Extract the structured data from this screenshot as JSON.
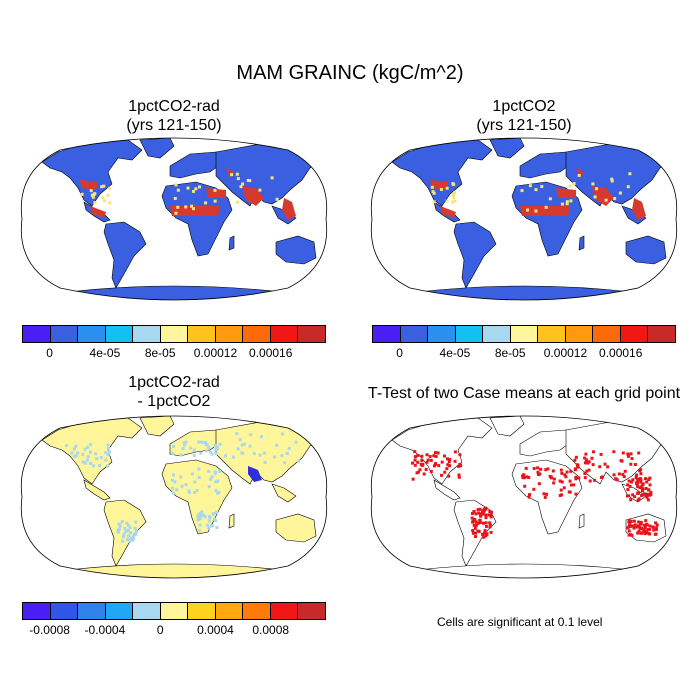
{
  "figure": {
    "title": "MAM GRAINC (kgC/m^2)",
    "note": "Cells are significant at 0.1 level"
  },
  "panels": [
    {
      "id": "p1",
      "title_line1": "1pctCO2-rad",
      "title_line2": "(yrs 121-150)",
      "fill": "#3a5fe0"
    },
    {
      "id": "p2",
      "title_line1": "1pctCO2",
      "title_line2": "(yrs 121-150)",
      "fill": "#3a5fe0"
    },
    {
      "id": "p3",
      "title_line1": "1pctCO2-rad",
      "title_line2": "- 1pctCO2",
      "fill": "#fff59a"
    },
    {
      "id": "p4",
      "title_line1": "T-Test of two Case means at each grid point",
      "title_line2": "",
      "fill": "#ffffff"
    }
  ],
  "colorbar_top": {
    "colors": [
      "#4a1ff5",
      "#3a5fe0",
      "#2b8ff0",
      "#14c0f2",
      "#a8d8f0",
      "#fff59a",
      "#ffc21f",
      "#ff9a10",
      "#ff6a08",
      "#f21717",
      "#c82a2a"
    ],
    "tick_labels": [
      "0",
      "4e-05",
      "8e-05",
      "0.00012",
      "0.00016"
    ]
  },
  "colorbar_bottom": {
    "colors": [
      "#4a1ff5",
      "#2f56e6",
      "#2f82ec",
      "#22a8f2",
      "#a8d8f0",
      "#fff59a",
      "#ffd21f",
      "#ffa810",
      "#ff7a08",
      "#f21717",
      "#c82a2a"
    ],
    "tick_labels": [
      "-0.0008",
      "-0.0004",
      "0",
      "0.0004",
      "0.0008"
    ]
  }
}
